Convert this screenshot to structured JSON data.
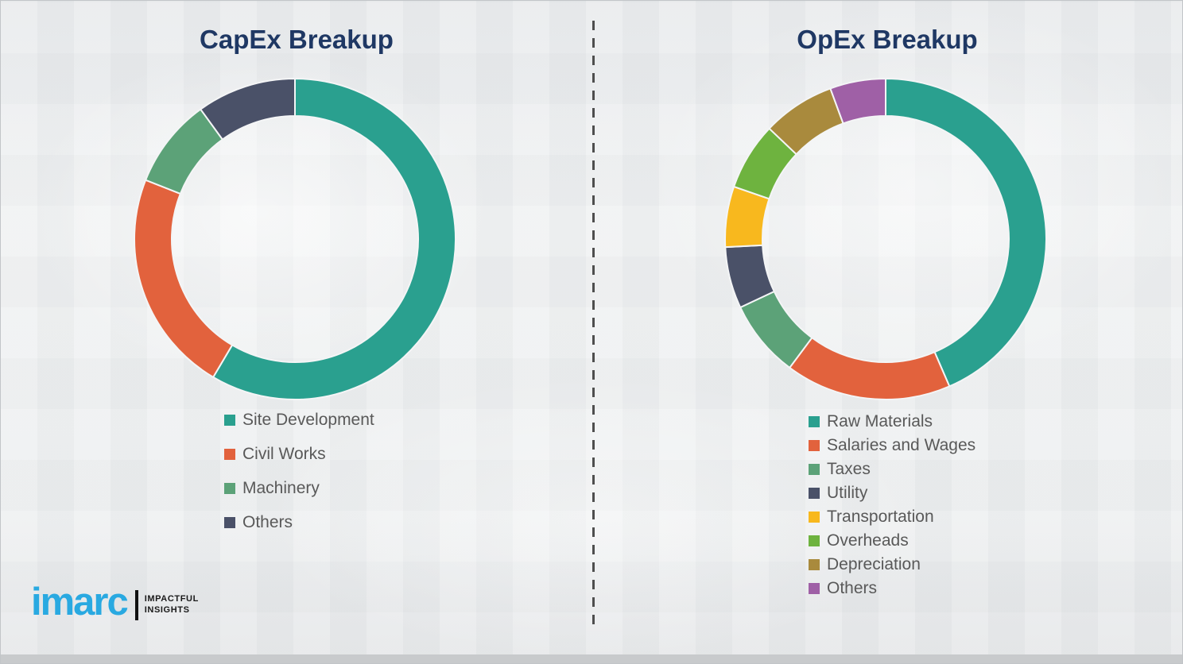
{
  "page": {
    "background_color": "#ECEEEF",
    "title_color": "#1F3864",
    "legend_text_color": "#595959",
    "divider_style": "vertical dashed line",
    "divider_color": "#4E4E4E"
  },
  "branding": {
    "logo_text": "imarc",
    "logo_color": "#29A9E1",
    "tagline_line1": "IMPACTFUL",
    "tagline_line2": "INSIGHTS"
  },
  "chart_data": [
    {
      "type": "pie",
      "subtype": "donut",
      "title": "CapEx Breakup",
      "direction": "clockwise",
      "start_angle_deg": 0,
      "legend_position": "below-left",
      "segments": [
        {
          "label": "Site Development",
          "value_pct": 58.5,
          "color": "#2AA08F"
        },
        {
          "label": "Civil Works",
          "value_pct": 22.5,
          "color": "#E2623D"
        },
        {
          "label": "Machinery",
          "value_pct": 9.0,
          "color": "#5CA278"
        },
        {
          "label": "Others",
          "value_pct": 10.0,
          "color": "#4A5168"
        }
      ]
    },
    {
      "type": "pie",
      "subtype": "donut",
      "title": "OpEx Breakup",
      "direction": "clockwise",
      "start_angle_deg": 0,
      "legend_position": "below-left",
      "segments": [
        {
          "label": "Raw Materials",
          "value_pct": 43.5,
          "color": "#2AA08F"
        },
        {
          "label": "Salaries and Wages",
          "value_pct": 16.7,
          "color": "#E2623D"
        },
        {
          "label": "Taxes",
          "value_pct": 7.8,
          "color": "#5CA278"
        },
        {
          "label": "Utility",
          "value_pct": 6.2,
          "color": "#4A5168"
        },
        {
          "label": "Transportation",
          "value_pct": 6.1,
          "color": "#F8B81E"
        },
        {
          "label": "Overheads",
          "value_pct": 6.8,
          "color": "#6EB33F"
        },
        {
          "label": "Depreciation",
          "value_pct": 7.3,
          "color": "#A98A3D"
        },
        {
          "label": "Others",
          "value_pct": 5.6,
          "color": "#9F60A6"
        }
      ]
    }
  ]
}
